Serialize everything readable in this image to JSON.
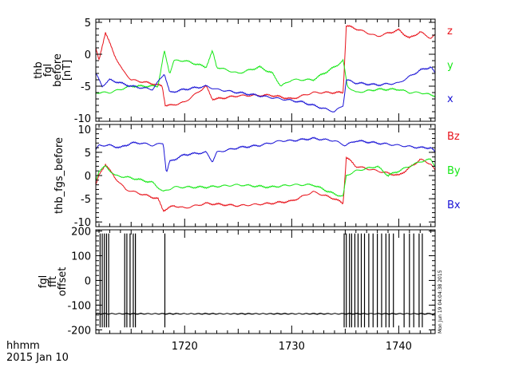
{
  "colors": {
    "red": "#e8121a",
    "green": "#18e818",
    "blue": "#1a14d6",
    "black": "#000000"
  },
  "footer": {
    "time_label": "hhmm",
    "date": "2015 Jan 10"
  },
  "stamp": "Mon Jun 19 04:04:38 2015",
  "chart_data": [
    {
      "type": "line",
      "title": "",
      "ylabel": [
        "thb",
        "fgl",
        "before",
        "[nT]"
      ],
      "ylim": [
        -10.5,
        5.5
      ],
      "xlim": [
        1711.7,
        1743.4
      ],
      "yticks": [
        5,
        0,
        -5,
        -10
      ],
      "xticks": [
        1720,
        1730,
        1740
      ],
      "xticklabels": [
        "",
        "",
        ""
      ],
      "series": [
        {
          "name": "z",
          "color": "red",
          "x": [
            1711.7,
            1712,
            1712.6,
            1713.4,
            1714.2,
            1715,
            1717,
            1717.9,
            1718.2,
            1718.8,
            1720,
            1722,
            1722.6,
            1723,
            1725,
            1728,
            1730,
            1732,
            1734,
            1734.8,
            1735.1,
            1736,
            1738,
            1740,
            1741,
            1742,
            1743,
            1743.4
          ],
          "y": [
            1,
            -1,
            3.5,
            0,
            -2.5,
            -4,
            -4.6,
            -5,
            -8,
            -8,
            -7.5,
            -5,
            -7,
            -7,
            -6.5,
            -6.4,
            -7,
            -6,
            -6,
            -6,
            4.5,
            4,
            2.8,
            3.8,
            2.5,
            3.5,
            2.5,
            3
          ]
        },
        {
          "name": "y",
          "color": "green",
          "x": [
            1711.7,
            1713,
            1715,
            1717.5,
            1718.1,
            1718.6,
            1719,
            1720,
            1722,
            1722.6,
            1723,
            1725,
            1727,
            1728.2,
            1729,
            1730,
            1732,
            1734,
            1734.8,
            1735.2,
            1736,
            1738,
            1740,
            1741,
            1742,
            1743.4
          ],
          "y": [
            -6,
            -6,
            -5,
            -5,
            0.5,
            -3,
            -1,
            -1,
            -2,
            0.5,
            -2,
            -3,
            -2,
            -3,
            -5,
            -4,
            -4,
            -2,
            -1,
            -5,
            -6,
            -5.5,
            -5.5,
            -6,
            -6,
            -6.5
          ]
        },
        {
          "name": "x",
          "color": "blue",
          "x": [
            1711.7,
            1712.3,
            1713,
            1714,
            1715,
            1717,
            1718.1,
            1718.6,
            1720,
            1722,
            1723,
            1725,
            1727,
            1729,
            1731,
            1733,
            1734,
            1734.8,
            1735.1,
            1736,
            1738,
            1740,
            1741,
            1742,
            1743,
            1743.4
          ],
          "y": [
            -3,
            -5,
            -4,
            -4.5,
            -5,
            -5.5,
            -3,
            -6,
            -5.5,
            -5,
            -5.5,
            -6,
            -6.5,
            -7,
            -7.5,
            -8.5,
            -9,
            -8,
            -4,
            -4.5,
            -4.8,
            -4.5,
            -3.5,
            -2.5,
            -2,
            -3
          ]
        }
      ]
    },
    {
      "type": "line",
      "title": "",
      "ylabel": [
        "thb_fgs_before"
      ],
      "ylim": [
        -11,
        11
      ],
      "xlim": [
        1711.7,
        1743.4
      ],
      "yticks": [
        10,
        5,
        0,
        -5,
        -10
      ],
      "xticks": [
        1720,
        1730,
        1740
      ],
      "xticklabels": [
        "",
        "",
        ""
      ],
      "series": [
        {
          "name": "Bz",
          "color": "red",
          "x": [
            1711.7,
            1712,
            1712.6,
            1713.5,
            1714.5,
            1716,
            1717.5,
            1718,
            1719,
            1720,
            1722,
            1725,
            1728,
            1730,
            1732,
            1734,
            1734.8,
            1735.1,
            1736,
            1738,
            1740,
            1741.5,
            1742,
            1743,
            1743.4
          ],
          "y": [
            -2,
            0,
            2.5,
            -0.5,
            -3,
            -4,
            -5,
            -7.5,
            -6.5,
            -7,
            -6,
            -6.5,
            -6,
            -5.5,
            -3.5,
            -5,
            -6,
            4,
            2,
            1,
            0,
            2.5,
            3.5,
            2.5,
            1
          ]
        },
        {
          "name": "By",
          "color": "green",
          "x": [
            1711.7,
            1712,
            1712.6,
            1713.5,
            1715,
            1717,
            1718,
            1719,
            1720,
            1722,
            1725,
            1728,
            1730,
            1732,
            1734,
            1734.8,
            1735.1,
            1736,
            1738,
            1739,
            1740,
            1742,
            1743,
            1743.4
          ],
          "y": [
            -1,
            1,
            2,
            0,
            -0.5,
            -1.5,
            -3.5,
            -2.5,
            -2.5,
            -2.5,
            -2,
            -2.5,
            -2,
            -2,
            -4,
            -4.5,
            0,
            1,
            2,
            0,
            1,
            3,
            3.5,
            2
          ]
        },
        {
          "name": "Bx",
          "color": "blue",
          "x": [
            1711.7,
            1712,
            1713,
            1714,
            1715,
            1716,
            1717,
            1718,
            1718.3,
            1718.6,
            1720,
            1722,
            1722.6,
            1723,
            1725,
            1727,
            1729,
            1730,
            1732,
            1734,
            1735,
            1736,
            1738,
            1740,
            1742,
            1743,
            1743.4
          ],
          "y": [
            5.5,
            6.5,
            6.5,
            6,
            7,
            7,
            6.5,
            7,
            0.5,
            3,
            4.5,
            5,
            3,
            5,
            6,
            6.5,
            7.5,
            7.5,
            8,
            7.5,
            6.5,
            7.5,
            7,
            6.5,
            6,
            6,
            5
          ]
        }
      ]
    },
    {
      "type": "line",
      "title": "",
      "ylabel": [
        "fgl",
        "fft",
        "offset"
      ],
      "ylim": [
        -215,
        205
      ],
      "xlim": [
        1711.7,
        1743.4
      ],
      "yticks": [
        200,
        100,
        0,
        -100,
        -200
      ],
      "xticks": [
        1720,
        1730,
        1740
      ],
      "xticklabels": [
        "1720",
        "1730",
        "1740"
      ],
      "baseline": -135,
      "spikes": [
        1712.1,
        1712.3,
        1712.5,
        1712.7,
        1712.9,
        1714.4,
        1714.6,
        1714.9,
        1715.2,
        1715.4,
        1718.15,
        1734.9,
        1735.1,
        1735.4,
        1735.6,
        1735.9,
        1736.2,
        1736.5,
        1736.8,
        1737.2,
        1737.6,
        1738.0,
        1738.4,
        1738.8,
        1739.1,
        1739.5,
        1740.5,
        1741.0,
        1741.4,
        1741.9,
        1742.2
      ],
      "series": [
        {
          "name": "offset",
          "color": "black"
        }
      ]
    }
  ]
}
